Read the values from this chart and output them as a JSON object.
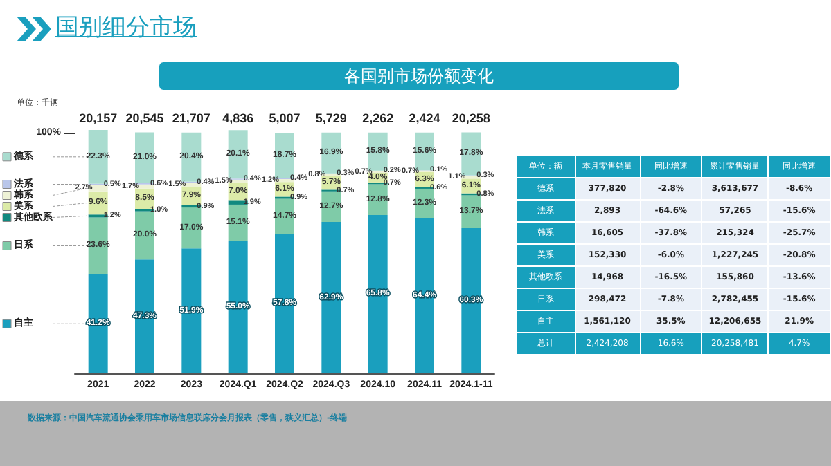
{
  "chart_data": [
    {
      "type": "bar",
      "title": "各国别市场份额变化",
      "ylabel": "单位：千辆",
      "annotations": [
        "国别细分市场",
        "数据来源：中国汽车流通协会乘用车市场信息联席分会月报表（零售，狭义汇总）-终端",
        "20,157",
        "20,545",
        "21,707",
        "4,836",
        "5,007",
        "5,729",
        "2,262",
        "2,424",
        "20,258"
      ],
      "legend": "left",
      "categories": [
        "2021",
        "2022",
        "2023",
        "2024.Q1",
        "2024.Q2",
        "2024.Q3",
        "2024.10",
        "2024.11",
        "2024.1-11"
      ],
      "stacked": true,
      "ylim": [
        0,
        101.1
      ],
      "yticks": [
        {
          "value": 100,
          "label": "100%"
        }
      ],
      "series": [
        {
          "name": "自主",
          "color": "#1a9fbe",
          "values": [
            41.2,
            47.3,
            51.9,
            55.0,
            57.8,
            62.9,
            65.8,
            64.4,
            60.3
          ],
          "value_labels": [
            "41.2%",
            "47.3%",
            "51.9%",
            "55.0%",
            "57.8%",
            "62.9%",
            "65.8%",
            "64.4%",
            "60.3%"
          ]
        },
        {
          "name": "日系",
          "color": "#7fcba8",
          "values": [
            23.6,
            20.0,
            17.0,
            15.1,
            14.7,
            12.7,
            12.8,
            12.3,
            13.7
          ],
          "value_labels": [
            "23.6%",
            "20.0%",
            "17.0%",
            "15.1%",
            "14.7%",
            "12.7%",
            "12.8%",
            "12.3%",
            "13.7%"
          ]
        },
        {
          "name": "其他欧系",
          "color": "#11897f",
          "values": [
            1.2,
            1.0,
            0.9,
            1.9,
            0.9,
            0.7,
            0.7,
            0.6,
            0.8
          ],
          "value_labels": [
            "1.2%",
            "1.0%",
            "0.9%",
            "1.9%",
            "0.9%",
            "0.7%",
            "0.7%",
            "0.6%",
            "0.8%"
          ]
        },
        {
          "name": "美系",
          "color": "#dceba8",
          "values": [
            9.6,
            8.5,
            7.9,
            7.0,
            6.1,
            5.7,
            4.0,
            6.3,
            6.1
          ],
          "value_labels": [
            "9.6%",
            "8.5%",
            "7.9%",
            "7.0%",
            "6.1%",
            "5.7%",
            "4.0%",
            "6.3%",
            "6.1%"
          ]
        },
        {
          "name": "韩系",
          "color": "#eef2d6",
          "values": [
            2.7,
            1.7,
            1.5,
            1.5,
            1.2,
            0.8,
            0.7,
            0.7,
            1.1
          ],
          "value_labels": [
            "2.7%",
            "1.7%",
            "1.5%",
            "1.5%",
            "1.2%",
            "0.8%",
            "0.7%",
            "0.7%",
            "1.1%"
          ]
        },
        {
          "name": "法系",
          "color": "#b9c6ea",
          "values": [
            0.5,
            0.6,
            0.4,
            0.4,
            0.4,
            0.3,
            0.2,
            0.1,
            0.3
          ],
          "value_labels": [
            "0.5%",
            "0.6%",
            "0.4%",
            "0.4%",
            "0.4%",
            "0.3%",
            "0.2%",
            "0.1%",
            "0.3%"
          ]
        },
        {
          "name": "德系",
          "color": "#a9dccf",
          "values": [
            22.3,
            21.0,
            20.4,
            20.1,
            18.7,
            16.9,
            15.8,
            15.6,
            17.8
          ],
          "value_labels": [
            "22.3%",
            "21.0%",
            "20.4%",
            "20.1%",
            "18.7%",
            "16.9%",
            "15.8%",
            "15.6%",
            "17.8%"
          ]
        }
      ]
    },
    {
      "type": "other",
      "ylabel": "单位：辆",
      "categories": [
        "本月零售销量",
        "同比增速",
        "累计零售销量",
        "同比增速"
      ],
      "y_categories": [
        "德系",
        "法系",
        "韩系",
        "美系",
        "其他欧系",
        "日系",
        "自主",
        "总计"
      ],
      "cell_labels": [
        [
          "377,820",
          "-2.8%",
          "3,613,677",
          "-8.6%"
        ],
        [
          "2,893",
          "-64.6%",
          "57,265",
          "-15.6%"
        ],
        [
          "16,605",
          "-37.8%",
          "215,324",
          "-25.7%"
        ],
        [
          "152,330",
          "-6.0%",
          "1,227,245",
          "-20.8%"
        ],
        [
          "14,968",
          "-16.5%",
          "155,860",
          "-13.6%"
        ],
        [
          "298,472",
          "-7.8%",
          "2,782,455",
          "-15.6%"
        ],
        [
          "1,561,120",
          "35.5%",
          "12,206,655",
          "21.9%"
        ],
        [
          "2,424,208",
          "16.6%",
          "20,258,481",
          "4.7%"
        ]
      ]
    }
  ]
}
